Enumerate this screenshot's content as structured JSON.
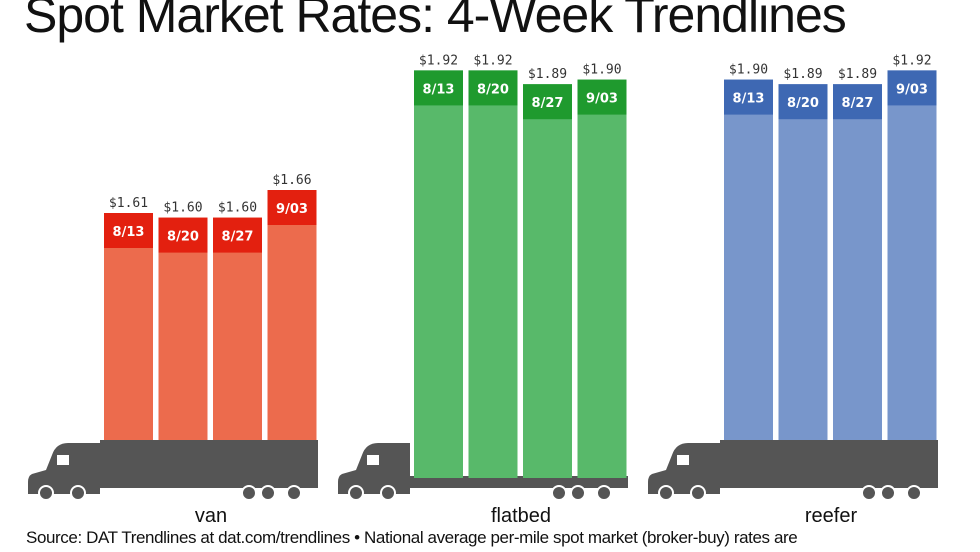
{
  "chart_data": {
    "type": "bar",
    "title": "Spot Market Rates: 4-Week Trendlines",
    "source": "Source: DAT Trendlines at dat.com/trendlines • National average per-mile spot market (broker-buy) rates are",
    "categories": [
      "8/13",
      "8/20",
      "8/27",
      "9/03"
    ],
    "series": [
      {
        "name": "van",
        "values": [
          1.61,
          1.6,
          1.6,
          1.66
        ],
        "labels": [
          "$1.61",
          "$1.60",
          "$1.60",
          "$1.66"
        ],
        "color": "#ec6b4d",
        "header_color": "#e3200f"
      },
      {
        "name": "flatbed",
        "values": [
          1.92,
          1.92,
          1.89,
          1.9
        ],
        "labels": [
          "$1.92",
          "$1.92",
          "$1.89",
          "$1.90"
        ],
        "color": "#58b96a",
        "header_color": "#1f9a2e"
      },
      {
        "name": "reefer",
        "values": [
          1.9,
          1.89,
          1.89,
          1.92
        ],
        "labels": [
          "$1.90",
          "$1.89",
          "$1.89",
          "$1.92"
        ],
        "color": "#7896cb",
        "header_color": "#3e68b3"
      }
    ],
    "truck_color": "#555555"
  }
}
